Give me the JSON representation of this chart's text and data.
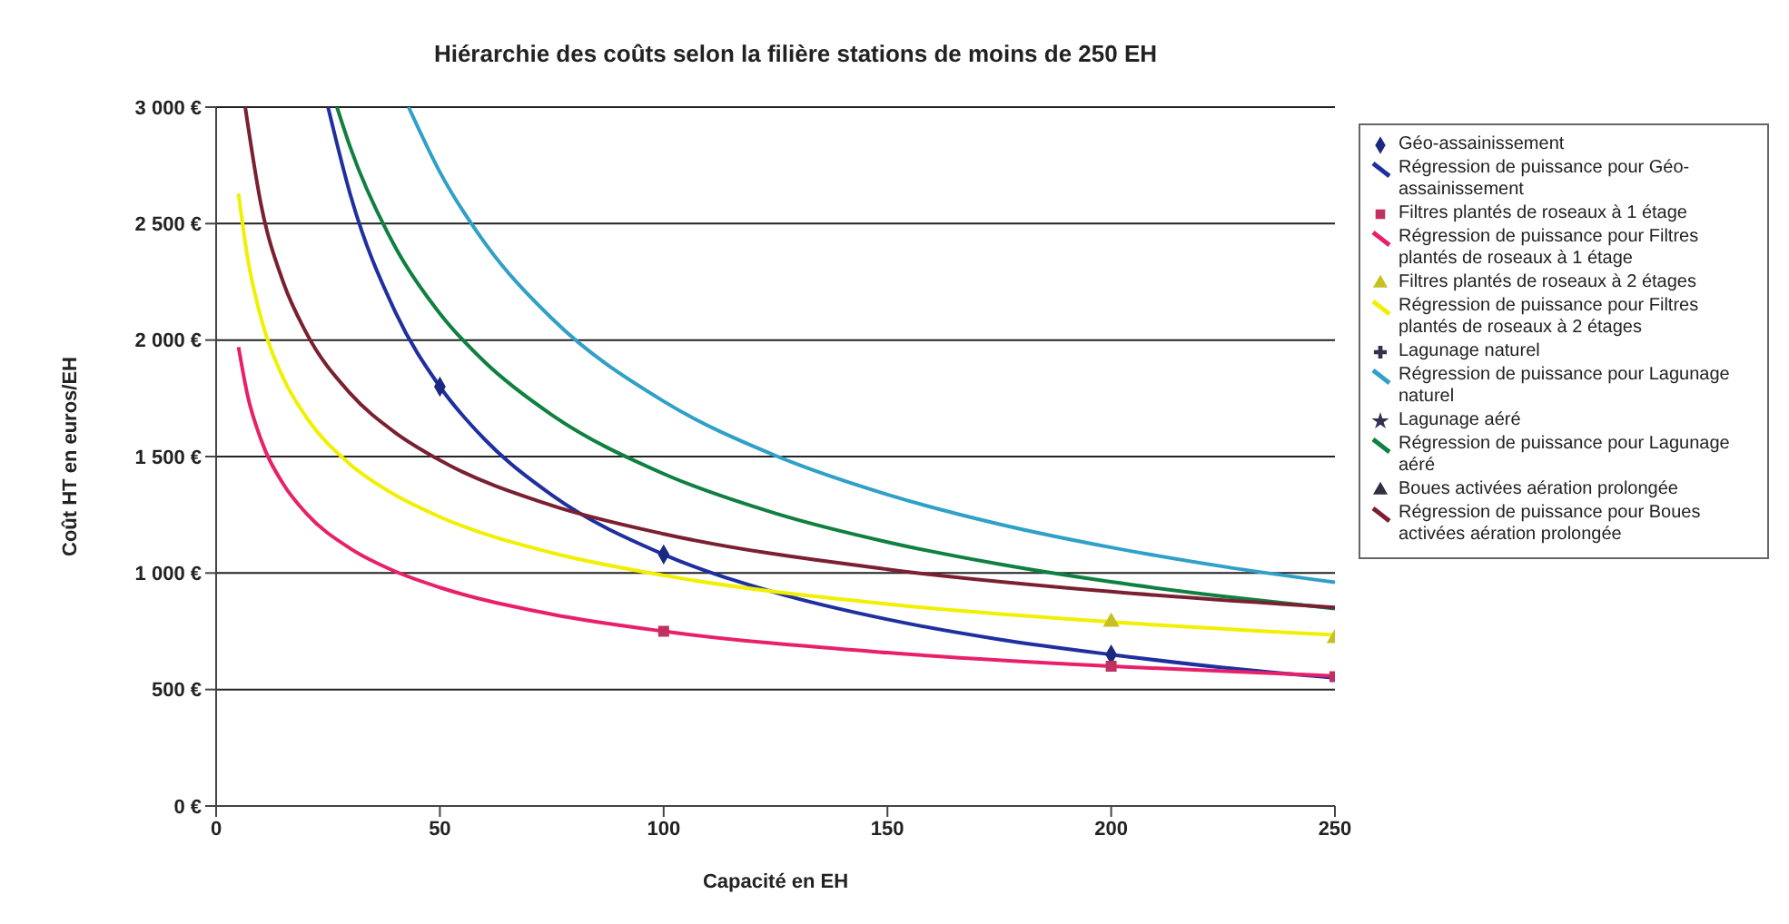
{
  "chart_data": {
    "type": "line",
    "title": "Hiérarchie des coûts selon la filière stations de moins de 250 EH",
    "xlabel": "Capacité en EH",
    "ylabel": "Coût HT en euros/EH",
    "xlim": [
      0,
      250
    ],
    "xticks": [
      0,
      50,
      100,
      150,
      200,
      250
    ],
    "ylim": [
      0,
      3000
    ],
    "yticks": [
      {
        "value": 0,
        "label": "0 €"
      },
      {
        "value": 500,
        "label": "500 €"
      },
      {
        "value": 1000,
        "label": "1 000 €"
      },
      {
        "value": 1500,
        "label": "1 500 €"
      },
      {
        "value": 2000,
        "label": "2 000 €"
      },
      {
        "value": 2500,
        "label": "2 500 €"
      },
      {
        "value": 3000,
        "label": "3 000 €"
      }
    ],
    "grid": "y",
    "legend": "right",
    "series": [
      {
        "name": "Géo-assainissement",
        "type": "scatter",
        "marker": "diamond",
        "color": "#1a2a80",
        "x": [
          50,
          100,
          200
        ],
        "values": [
          1800,
          1080,
          650
        ]
      },
      {
        "name": "Régression de puissance pour Géo-assainissement",
        "color": "#1f2f9f",
        "x": [
          25,
          30,
          40,
          50,
          60,
          75,
          100,
          125,
          150,
          175,
          200,
          225,
          250
        ],
        "values": [
          3000,
          2623,
          2122,
          1800,
          1574,
          1335,
          1080,
          916,
          801,
          715,
          650,
          594,
          550
        ]
      },
      {
        "name": "Filtres plantés de roseaux à 1 étage",
        "type": "scatter",
        "marker": "square",
        "color": "#c03060",
        "x": [
          100,
          200,
          250
        ],
        "values": [
          750,
          600,
          555
        ]
      },
      {
        "name": "Régression de puissance pour Filtres plantés de roseaux à 1 étage",
        "color": "#e8206a",
        "x": [
          5,
          7,
          10,
          15,
          20,
          30,
          40,
          50,
          75,
          100,
          150,
          200,
          250
        ],
        "values": [
          1970,
          1765,
          1574,
          1382,
          1259,
          1105,
          1007,
          938,
          823,
          750,
          658,
          600,
          558
        ]
      },
      {
        "name": "Filtres plantés de roseaux à 2 étages",
        "type": "scatter",
        "marker": "triangle",
        "color": "#c8c020",
        "x": [
          200,
          250
        ],
        "values": [
          790,
          720
        ]
      },
      {
        "name": "Régression de puissance pour Filtres plantés de roseaux à 2 étages",
        "color": "#f0f000",
        "x": [
          5,
          7,
          10,
          15,
          20,
          30,
          40,
          50,
          75,
          100,
          150,
          200,
          250
        ],
        "values": [
          2629,
          2356,
          2097,
          1837,
          1673,
          1466,
          1335,
          1241,
          1087,
          990,
          867,
          790,
          734
        ]
      },
      {
        "name": "Lagunage naturel",
        "type": "scatter",
        "marker": "cross",
        "color": "#303050"
      },
      {
        "name": "Régression de puissance pour Lagunage naturel",
        "color": "#30a0c8",
        "x": [
          43,
          50,
          60,
          75,
          100,
          125,
          150,
          175,
          200,
          225,
          250
        ],
        "values": [
          3000,
          2721,
          2418,
          2093,
          1737,
          1504,
          1337,
          1210,
          1110,
          1028,
          960
        ]
      },
      {
        "name": "Lagunage aéré",
        "type": "scatter",
        "marker": "star",
        "color": "#303050"
      },
      {
        "name": "Régression de puissance pour Lagunage aéré",
        "color": "#108040",
        "x": [
          27,
          30,
          40,
          50,
          60,
          75,
          100,
          125,
          150,
          175,
          200,
          225,
          250
        ],
        "values": [
          3000,
          2826,
          2400,
          2114,
          1906,
          1679,
          1426,
          1256,
          1133,
          1038,
          962,
          900,
          847
        ]
      },
      {
        "name": "Boues activées aération prolongée",
        "type": "scatter",
        "marker": "triangle",
        "color": "#303040"
      },
      {
        "name": "Régression de puissance pour Boues activées aération prolongée",
        "color": "#7a2030",
        "x": [
          6.5,
          10,
          15,
          20,
          30,
          40,
          50,
          75,
          100,
          150,
          200,
          250
        ],
        "values": [
          3000,
          2585,
          2248,
          2036,
          1770,
          1603,
          1484,
          1290,
          1168,
          1016,
          920,
          852
        ]
      }
    ]
  }
}
